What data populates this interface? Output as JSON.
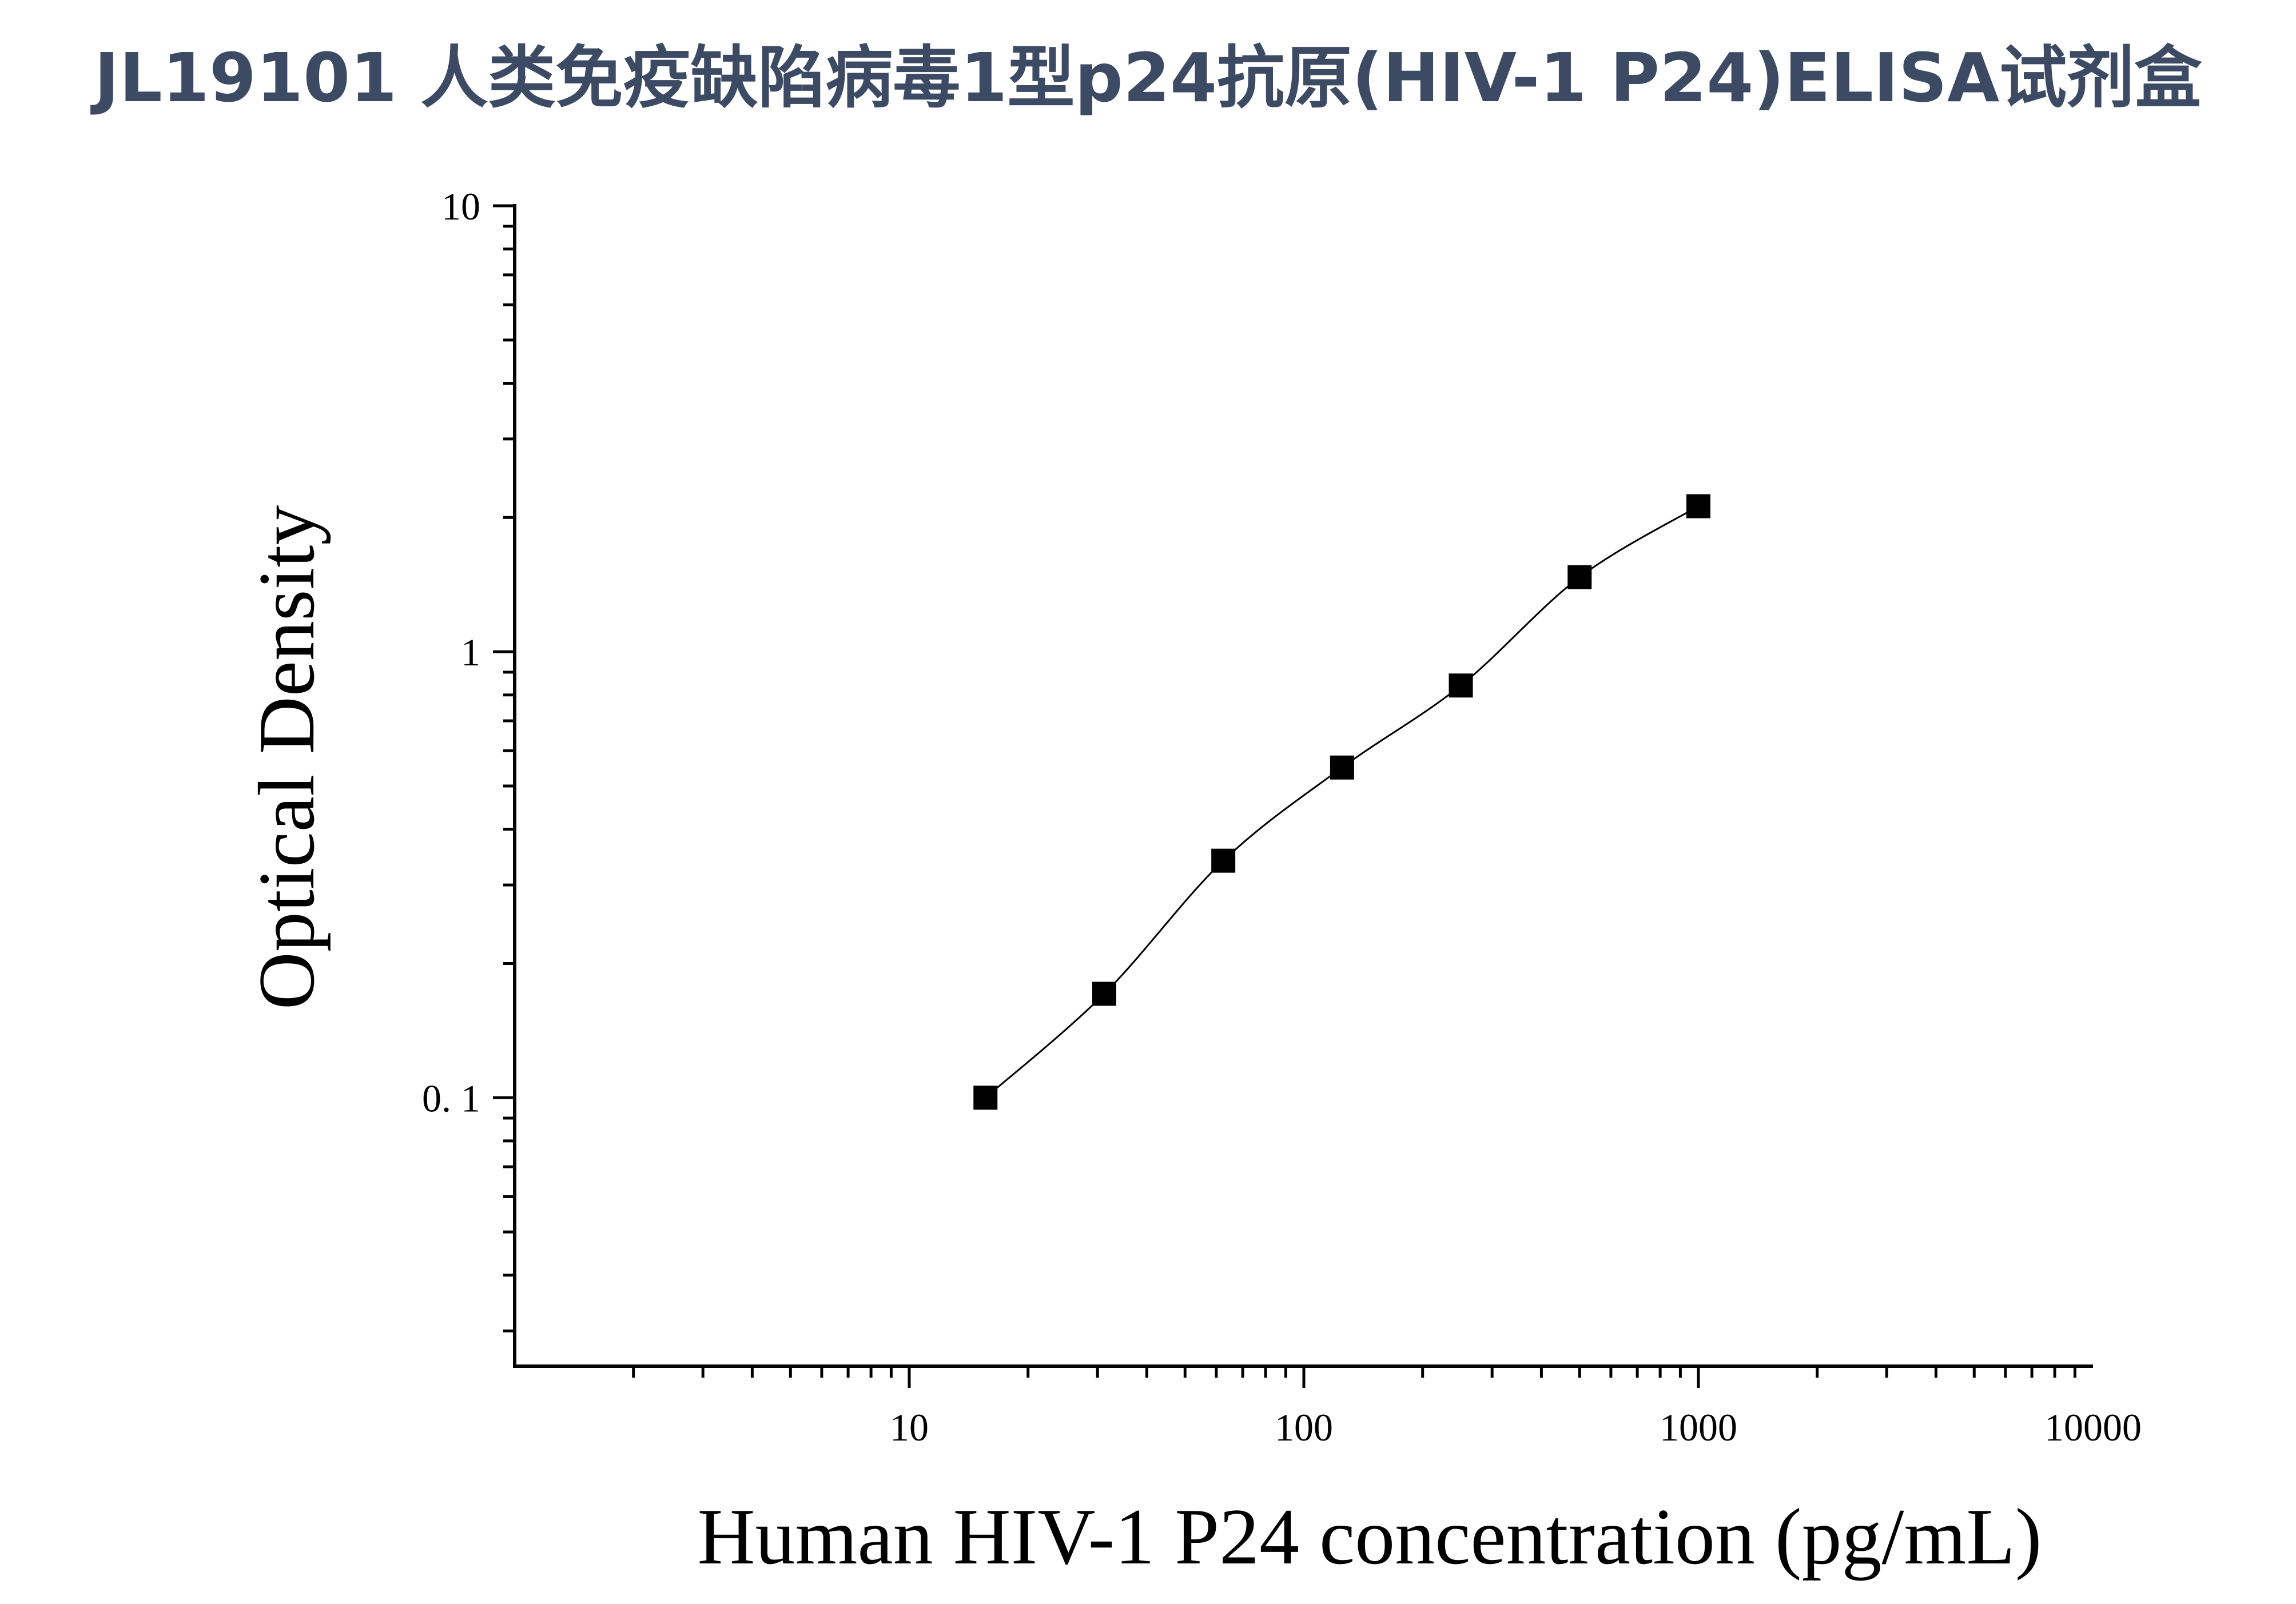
{
  "chart_data": {
    "type": "scatter",
    "title": "JL19101 人类免疫缺陷病毒1型p24抗原(HIV-1 P24)ELISA试剂盒",
    "xlabel": "Human HIV-1 P24 concentration (pg/mL)",
    "ylabel": "Optical Density",
    "x_scale": "log",
    "y_scale": "log",
    "xlim": [
      1,
      10000
    ],
    "ylim": [
      0.025,
      10
    ],
    "x_ticks": [
      {
        "value": 10,
        "label": "10"
      },
      {
        "value": 100,
        "label": "100"
      },
      {
        "value": 1000,
        "label": "1000"
      },
      {
        "value": 10000,
        "label": "10000"
      }
    ],
    "y_ticks": [
      {
        "value": 0.1,
        "label": "0. 1"
      },
      {
        "value": 1,
        "label": "1"
      },
      {
        "value": 10,
        "label": "10"
      }
    ],
    "grid": false,
    "legend": "none",
    "series": [
      {
        "x": [
          15.6,
          31.2,
          62.5,
          125,
          250,
          500,
          1000
        ],
        "y": [
          0.1,
          0.171,
          0.34,
          0.55,
          0.84,
          1.47,
          2.12
        ],
        "marker": "square",
        "color": "#000000",
        "fit_line": true
      }
    ]
  }
}
